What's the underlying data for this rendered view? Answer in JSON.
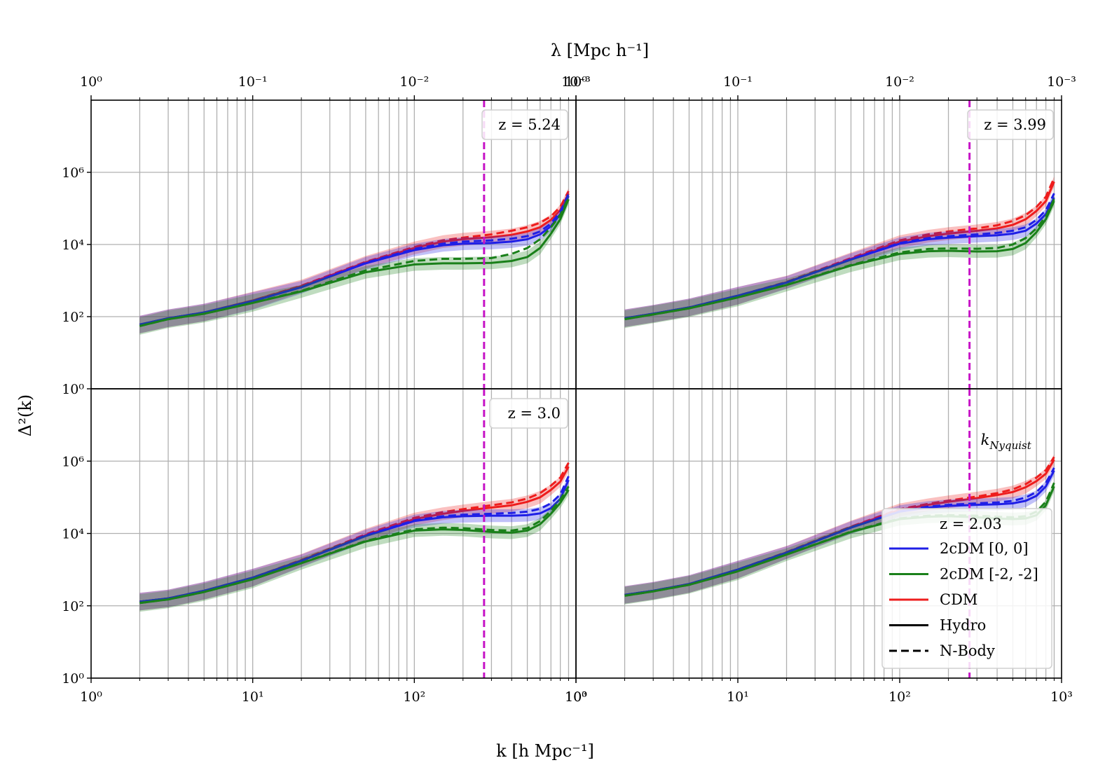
{
  "chart_data": {
    "type": "line",
    "xscale": "log",
    "yscale": "log",
    "xlim": [
      1,
      1000
    ],
    "ylim": [
      1,
      100000000.0
    ],
    "xlabel": "k [h Mpc⁻¹]",
    "ylabel": "Δ²(k)",
    "top_axis_label": "λ [Mpc h⁻¹]",
    "x_tick_labels": [
      "10⁰",
      "10¹",
      "10²",
      "10³"
    ],
    "top_tick_labels": [
      "10⁰",
      "10⁻¹",
      "10⁻²",
      "10⁻³"
    ],
    "y_tick_labels": [
      "10⁰",
      "10²",
      "10⁴",
      "10⁶"
    ],
    "y_tick_values": [
      1,
      100,
      10000,
      1000000
    ],
    "nyquist_k": 270,
    "nyquist_label": "k_Nyquist",
    "colors": {
      "2cDM [0, 0]": "#1f1fe6",
      "2cDM [-2, -2]": "#1a801a",
      "CDM": "#ee1d1d",
      "nyquist": "#c613c6"
    },
    "legend": {
      "title": "z = 2.03",
      "entries": [
        {
          "label": "2cDM [0, 0]",
          "color": "#1f1fe6",
          "style": "solid"
        },
        {
          "label": "2cDM [-2, -2]",
          "color": "#1a801a",
          "style": "solid"
        },
        {
          "label": "CDM",
          "color": "#ee1d1d",
          "style": "solid"
        },
        {
          "label": "Hydro",
          "color": "#000000",
          "style": "solid"
        },
        {
          "label": "N-Body",
          "color": "#000000",
          "style": "dashed"
        }
      ]
    },
    "panels": [
      {
        "z_label": "z = 5.24",
        "series": [
          {
            "name": "CDM",
            "k": [
              2,
              3,
              5,
              10,
              20,
              50,
              100,
              150,
              200,
              300,
              400,
              500,
              600,
              700,
              800,
              900
            ],
            "hydro": [
              60,
              90,
              130,
              280,
              700,
              3200,
              8000,
              12000,
              14000,
              16000,
              18500,
              23000,
              30000,
              48000,
              90000,
              260000
            ],
            "nbody": [
              60,
              90,
              130,
              280,
              720,
              3300,
              8500,
              13000,
              15500,
              19000,
              24000,
              30000,
              40000,
              60000,
              110000,
              300000
            ]
          },
          {
            "name": "2cDM [0, 0]",
            "k": [
              2,
              3,
              5,
              10,
              20,
              50,
              100,
              150,
              200,
              300,
              400,
              500,
              600,
              700,
              800,
              900
            ],
            "hydro": [
              60,
              90,
              130,
              270,
              650,
              3000,
              7000,
              9500,
              10500,
              11000,
              12000,
              14000,
              19000,
              32000,
              70000,
              220000
            ],
            "nbody": [
              60,
              90,
              130,
              270,
              660,
              3100,
              7500,
              10500,
              12000,
              13000,
              14500,
              17000,
              23000,
              38000,
              80000,
              250000
            ]
          },
          {
            "name": "2cDM [-2, -2]",
            "k": [
              2,
              3,
              5,
              10,
              20,
              50,
              100,
              150,
              200,
              300,
              400,
              500,
              600,
              700,
              800,
              900
            ],
            "hydro": [
              55,
              85,
              120,
              240,
              500,
              1700,
              2800,
              3000,
              3000,
              3100,
              3500,
              4500,
              8000,
              20000,
              50000,
              180000
            ],
            "nbody": [
              55,
              85,
              120,
              240,
              520,
              1900,
              3500,
              4000,
              4000,
              4200,
              5500,
              8000,
              14000,
              30000,
              65000,
              200000
            ]
          }
        ]
      },
      {
        "z_label": "z = 3.99",
        "series": [
          {
            "name": "CDM",
            "k": [
              2,
              3,
              5,
              10,
              20,
              50,
              100,
              150,
              200,
              300,
              400,
              500,
              600,
              700,
              800,
              900
            ],
            "hydro": [
              90,
              120,
              180,
              380,
              900,
              4000,
              12000,
              17000,
              20000,
              24000,
              28000,
              35000,
              50000,
              85000,
              160000,
              550000
            ],
            "nbody": [
              90,
              120,
              180,
              380,
              920,
              4200,
              13000,
              19000,
              23000,
              28000,
              34000,
              45000,
              65000,
              110000,
              210000,
              700000
            ]
          },
          {
            "name": "2cDM [0, 0]",
            "k": [
              2,
              3,
              5,
              10,
              20,
              50,
              100,
              150,
              200,
              300,
              400,
              500,
              600,
              700,
              800,
              900
            ],
            "hydro": [
              90,
              120,
              180,
              380,
              880,
              3800,
              10500,
              14000,
              15500,
              17000,
              18000,
              20000,
              24000,
              38000,
              70000,
              200000
            ],
            "nbody": [
              90,
              120,
              180,
              380,
              890,
              3900,
              11000,
              15000,
              17000,
              19000,
              21000,
              24000,
              30000,
              48000,
              90000,
              260000
            ]
          },
          {
            "name": "2cDM [-2, -2]",
            "k": [
              2,
              3,
              5,
              10,
              20,
              50,
              100,
              150,
              200,
              300,
              400,
              500,
              600,
              700,
              800,
              900
            ],
            "hydro": [
              85,
              115,
              170,
              340,
              750,
              2600,
              5500,
              6500,
              6700,
              6400,
              6500,
              7500,
              11000,
              22000,
              50000,
              160000
            ],
            "nbody": [
              85,
              115,
              170,
              340,
              760,
              2700,
              6000,
              7500,
              7800,
              7600,
              8000,
              10000,
              15000,
              28000,
              60000,
              180000
            ]
          }
        ]
      },
      {
        "z_label": "z = 3.0",
        "series": [
          {
            "name": "CDM",
            "k": [
              2,
              3,
              5,
              10,
              20,
              50,
              100,
              150,
              200,
              300,
              400,
              500,
              600,
              700,
              800,
              900
            ],
            "hydro": [
              130,
              160,
              260,
              600,
              1800,
              9000,
              25000,
              35000,
              42000,
              52000,
              60000,
              75000,
              100000,
              160000,
              270000,
              700000
            ],
            "nbody": [
              130,
              160,
              260,
              600,
              1850,
              9500,
              27000,
              39000,
              47000,
              60000,
              72000,
              92000,
              130000,
              210000,
              350000,
              900000
            ]
          },
          {
            "name": "2cDM [0, 0]",
            "k": [
              2,
              3,
              5,
              10,
              20,
              50,
              100,
              150,
              200,
              300,
              400,
              500,
              600,
              700,
              800,
              900
            ],
            "hydro": [
              130,
              160,
              260,
              600,
              1750,
              8500,
              22000,
              28000,
              30000,
              31000,
              31000,
              32000,
              36000,
              50000,
              90000,
              300000
            ],
            "nbody": [
              130,
              160,
              260,
              600,
              1760,
              8800,
              23000,
              30000,
              33000,
              35000,
              37000,
              40000,
              48000,
              68000,
              120000,
              380000
            ]
          },
          {
            "name": "2cDM [-2, -2]",
            "k": [
              2,
              3,
              5,
              10,
              20,
              50,
              100,
              150,
              200,
              300,
              400,
              500,
              600,
              700,
              800,
              900
            ],
            "hydro": [
              120,
              150,
              240,
              540,
              1500,
              6000,
              12000,
              13000,
              12500,
              11000,
              10500,
              12000,
              18000,
              35000,
              70000,
              160000
            ],
            "nbody": [
              120,
              150,
              240,
              540,
              1520,
              6200,
              13000,
              14500,
              14000,
              12500,
              12000,
              14000,
              22000,
              42000,
              85000,
              200000
            ]
          }
        ]
      },
      {
        "z_label": "z = 2.03",
        "series": [
          {
            "name": "CDM",
            "k": [
              2,
              3,
              5,
              10,
              20,
              50,
              100,
              150,
              200,
              300,
              400,
              500,
              600,
              700,
              800,
              900
            ],
            "hydro": [
              200,
              260,
              400,
              1000,
              3000,
              15000,
              45000,
              62000,
              75000,
              95000,
              115000,
              140000,
              190000,
              280000,
              450000,
              1100000
            ],
            "nbody": [
              200,
              260,
              400,
              1000,
              3050,
              15500,
              47000,
              66000,
              81000,
              105000,
              130000,
              165000,
              230000,
              350000,
              560000,
              1300000
            ]
          },
          {
            "name": "2cDM [0, 0]",
            "k": [
              2,
              3,
              5,
              10,
              20,
              50,
              100,
              150,
              200,
              300,
              400,
              500,
              600,
              700,
              800,
              900
            ],
            "hydro": [
              200,
              260,
              400,
              1000,
              2950,
              14500,
              40000,
              52000,
              58000,
              62000,
              64000,
              68000,
              80000,
              110000,
              200000,
              550000
            ],
            "nbody": [
              200,
              260,
              400,
              1000,
              2960,
              14700,
              41000,
              55000,
              62000,
              68000,
              72000,
              80000,
              98000,
              140000,
              250000,
              650000
            ]
          },
          {
            "name": "2cDM [-2, -2]",
            "k": [
              2,
              3,
              5,
              10,
              20,
              50,
              100,
              150,
              200,
              300,
              400,
              500,
              600,
              700,
              800,
              900
            ],
            "hydro": [
              190,
              250,
              380,
              900,
              2600,
              11000,
              25000,
              29000,
              30000,
              28000,
              26000,
              25000,
              26000,
              32000,
              60000,
              200000
            ],
            "nbody": [
              190,
              250,
              380,
              900,
              2620,
              11300,
              26000,
              31000,
              32000,
              31000,
              29000,
              28000,
              30000,
              40000,
              75000,
              250000
            ]
          }
        ]
      }
    ]
  }
}
